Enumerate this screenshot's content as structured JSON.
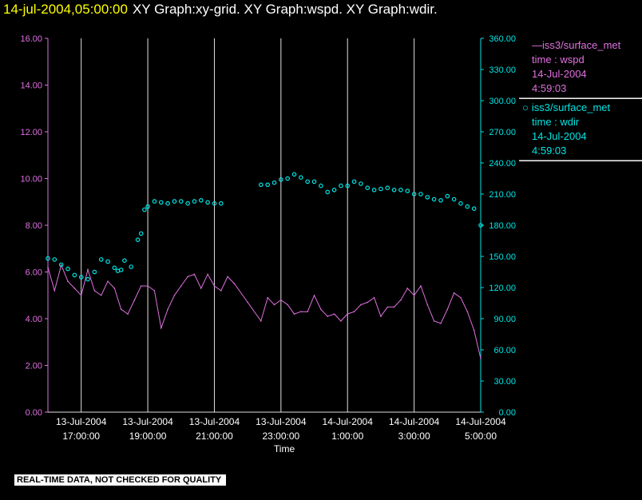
{
  "title": {
    "time": "14-jul-2004,05:00:00",
    "rest": "XY Graph:xy-grid.  XY Graph:wspd.  XY Graph:wdir."
  },
  "legend": {
    "wspd": [
      "—iss3/surface_met",
      "time : wspd",
      "14-Jul-2004",
      "4:59:03"
    ],
    "wdir": [
      "iss3/surface_met",
      "time : wdir",
      "14-Jul-2004",
      "4:59:03"
    ]
  },
  "warning": "REAL-TIME DATA, NOT CHECKED FOR QUALITY",
  "colors": {
    "wspd": "#e070e0",
    "wdir": "#00e5e5",
    "grid": "#e0e0e0",
    "axis_text": "#ffffff"
  },
  "chart_data": {
    "type": "line",
    "xlabel": "Time",
    "x_range_hours": [
      16.0,
      29.0
    ],
    "x_ticks": [
      {
        "t": 17,
        "l1": "13-Jul-2004",
        "l2": "17:00:00"
      },
      {
        "t": 19,
        "l1": "13-Jul-2004",
        "l2": "19:00:00"
      },
      {
        "t": 21,
        "l1": "13-Jul-2004",
        "l2": "21:00:00"
      },
      {
        "t": 23,
        "l1": "13-Jul-2004",
        "l2": "23:00:00"
      },
      {
        "t": 25,
        "l1": "14-Jul-2004",
        "l2": "1:00:00"
      },
      {
        "t": 27,
        "l1": "14-Jul-2004",
        "l2": "3:00:00"
      },
      {
        "t": 29,
        "l1": "14-Jul-2004",
        "l2": "5:00:00"
      }
    ],
    "left_axis": {
      "min": 0,
      "max": 16,
      "ticks": [
        "0.00",
        "2.00",
        "4.00",
        "6.00",
        "8.00",
        "10.00",
        "12.00",
        "14.00",
        "16.00"
      ]
    },
    "right_axis": {
      "min": 0,
      "max": 360,
      "ticks": [
        "0.00",
        "30.00",
        "60.00",
        "90.00",
        "120.00",
        "150.00",
        "180.00",
        "210.00",
        "240.00",
        "270.00",
        "300.00",
        "330.00",
        "360.00"
      ]
    },
    "series": [
      {
        "name": "wspd",
        "style": "line",
        "axis": "left",
        "points": [
          [
            16.0,
            6.2
          ],
          [
            16.2,
            5.2
          ],
          [
            16.4,
            6.3
          ],
          [
            16.6,
            5.6
          ],
          [
            16.8,
            5.3
          ],
          [
            17.0,
            5.0
          ],
          [
            17.2,
            6.1
          ],
          [
            17.4,
            5.2
          ],
          [
            17.6,
            5.0
          ],
          [
            17.8,
            5.6
          ],
          [
            18.0,
            5.3
          ],
          [
            18.2,
            4.4
          ],
          [
            18.4,
            4.2
          ],
          [
            18.6,
            4.8
          ],
          [
            18.8,
            5.4
          ],
          [
            19.0,
            5.4
          ],
          [
            19.2,
            5.2
          ],
          [
            19.4,
            3.6
          ],
          [
            19.6,
            4.4
          ],
          [
            19.8,
            5.0
          ],
          [
            20.0,
            5.4
          ],
          [
            20.2,
            5.8
          ],
          [
            20.4,
            5.9
          ],
          [
            20.6,
            5.3
          ],
          [
            20.8,
            5.9
          ],
          [
            21.0,
            5.4
          ],
          [
            21.2,
            5.2
          ],
          [
            21.4,
            5.8
          ],
          [
            21.6,
            5.5
          ],
          [
            22.0,
            4.7
          ],
          [
            22.4,
            3.9
          ],
          [
            22.6,
            4.9
          ],
          [
            22.8,
            4.6
          ],
          [
            23.0,
            4.8
          ],
          [
            23.2,
            4.6
          ],
          [
            23.4,
            4.2
          ],
          [
            23.6,
            4.3
          ],
          [
            23.8,
            4.3
          ],
          [
            24.0,
            5.0
          ],
          [
            24.2,
            4.4
          ],
          [
            24.4,
            4.1
          ],
          [
            24.6,
            4.2
          ],
          [
            24.8,
            3.9
          ],
          [
            25.0,
            4.2
          ],
          [
            25.2,
            4.3
          ],
          [
            25.4,
            4.6
          ],
          [
            25.6,
            4.7
          ],
          [
            25.8,
            4.9
          ],
          [
            26.0,
            4.1
          ],
          [
            26.2,
            4.5
          ],
          [
            26.4,
            4.5
          ],
          [
            26.6,
            4.8
          ],
          [
            26.8,
            5.3
          ],
          [
            27.0,
            5.0
          ],
          [
            27.2,
            5.4
          ],
          [
            27.4,
            4.6
          ],
          [
            27.6,
            3.9
          ],
          [
            27.8,
            3.8
          ],
          [
            28.0,
            4.4
          ],
          [
            28.2,
            5.1
          ],
          [
            28.4,
            4.9
          ],
          [
            28.6,
            4.3
          ],
          [
            28.8,
            3.5
          ],
          [
            29.0,
            2.3
          ]
        ]
      },
      {
        "name": "wdir",
        "style": "circles",
        "axis": "right",
        "points": [
          [
            16.0,
            148
          ],
          [
            16.2,
            147
          ],
          [
            16.4,
            142
          ],
          [
            16.6,
            138
          ],
          [
            16.8,
            132
          ],
          [
            17.0,
            130
          ],
          [
            17.2,
            128
          ],
          [
            17.4,
            135
          ],
          [
            17.6,
            147
          ],
          [
            17.8,
            145
          ],
          [
            18.0,
            139
          ],
          [
            18.1,
            136
          ],
          [
            18.2,
            137
          ],
          [
            18.3,
            146
          ],
          [
            18.5,
            140
          ],
          [
            18.7,
            166
          ],
          [
            18.8,
            172
          ],
          [
            18.9,
            195
          ],
          [
            19.0,
            198
          ],
          [
            19.2,
            203
          ],
          [
            19.4,
            202
          ],
          [
            19.6,
            201
          ],
          [
            19.8,
            203
          ],
          [
            20.0,
            203
          ],
          [
            20.2,
            201
          ],
          [
            20.4,
            203
          ],
          [
            20.6,
            204
          ],
          [
            20.8,
            202
          ],
          [
            21.0,
            201
          ],
          [
            21.2,
            201
          ],
          [
            22.4,
            219
          ],
          [
            22.6,
            219
          ],
          [
            22.8,
            221
          ],
          [
            23.0,
            224
          ],
          [
            23.2,
            225
          ],
          [
            23.4,
            229
          ],
          [
            23.6,
            226
          ],
          [
            23.8,
            222
          ],
          [
            24.0,
            222
          ],
          [
            24.2,
            218
          ],
          [
            24.4,
            212
          ],
          [
            24.6,
            214
          ],
          [
            24.8,
            218
          ],
          [
            25.0,
            218
          ],
          [
            25.2,
            222
          ],
          [
            25.4,
            220
          ],
          [
            25.6,
            216
          ],
          [
            25.8,
            214
          ],
          [
            26.0,
            215
          ],
          [
            26.2,
            216
          ],
          [
            26.4,
            214
          ],
          [
            26.6,
            214
          ],
          [
            26.8,
            213
          ],
          [
            27.0,
            210
          ],
          [
            27.2,
            210
          ],
          [
            27.4,
            207
          ],
          [
            27.6,
            205
          ],
          [
            27.8,
            204
          ],
          [
            28.0,
            208
          ],
          [
            28.2,
            205
          ],
          [
            28.4,
            201
          ],
          [
            28.6,
            198
          ],
          [
            28.8,
            196
          ],
          [
            29.0,
            180
          ]
        ]
      }
    ]
  }
}
